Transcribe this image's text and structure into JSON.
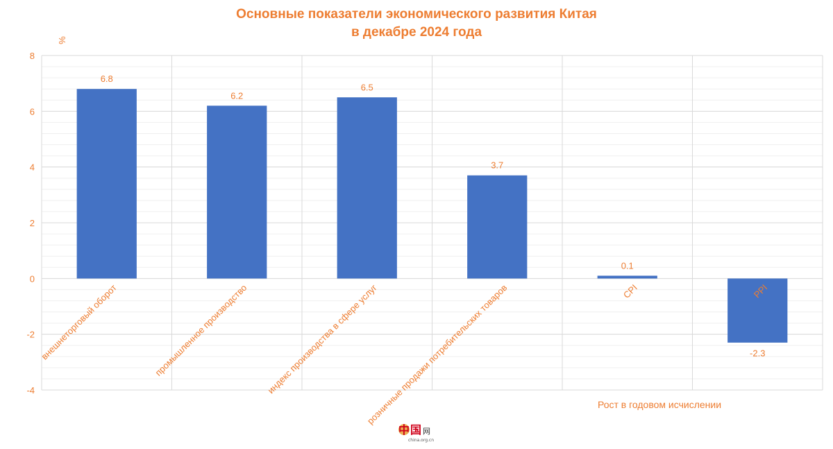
{
  "chart_data": {
    "type": "bar",
    "title": [
      "Основные показатели экономического развития Китая",
      "в декабре 2024 года"
    ],
    "ylabel": "%",
    "xlabel": "Рост в годовом исчислении",
    "categories": [
      "внешнеторговый оборот",
      "промышленное производство",
      "индекс производства в сфере услуг",
      "розничные продажи потребительских товаров",
      "CPI",
      "PPI"
    ],
    "values": [
      6.8,
      6.2,
      6.5,
      3.7,
      0.1,
      -2.3
    ],
    "data_labels": [
      "6.8",
      "6.2",
      "6.5",
      "3.7",
      "0.1",
      "-2.3"
    ],
    "ylim": [
      -4,
      8
    ],
    "yticks": [
      -4,
      -2,
      0,
      2,
      4,
      6,
      8
    ],
    "grid": true,
    "bar_color": "#4472C4",
    "text_color": "#ED7D31",
    "grid_color": "#D9D9D9"
  },
  "watermark": {
    "glyphs": "中国网",
    "caption": "china.org.cn"
  }
}
